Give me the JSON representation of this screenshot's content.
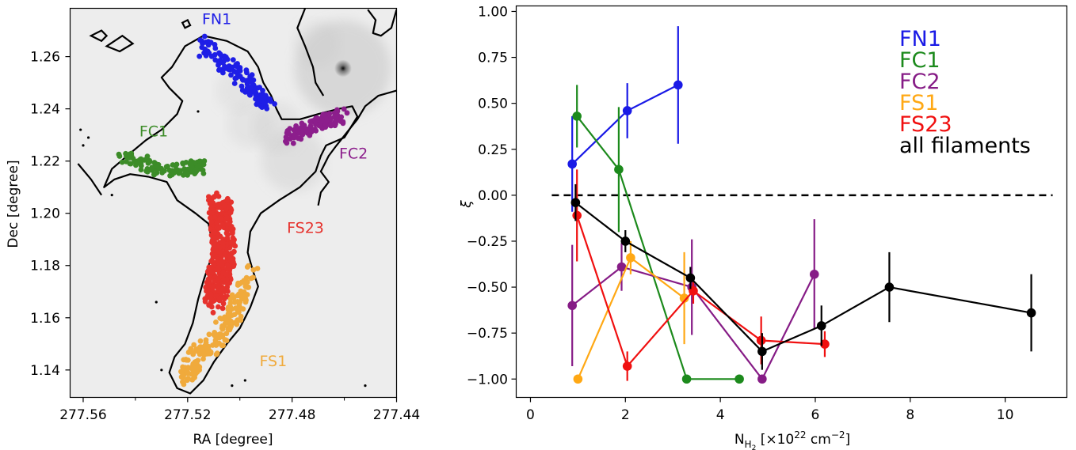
{
  "chart_data": [
    {
      "type": "scatter",
      "panel": "map",
      "xlabel": "RA [degree]",
      "ylabel": "Dec [degree]",
      "xlim": [
        277.565,
        277.44
      ],
      "ylim": [
        1.1295,
        1.2785
      ],
      "x_ticks": [
        277.56,
        277.52,
        277.48,
        277.44
      ],
      "x_tick_labels": [
        "277.56",
        "277.52",
        "277.48",
        "277.44"
      ],
      "y_ticks": [
        1.14,
        1.16,
        1.18,
        1.2,
        1.22,
        1.24,
        1.26
      ],
      "y_tick_labels": [
        "1.14",
        "1.16",
        "1.18",
        "1.20",
        "1.22",
        "1.24",
        "1.26"
      ],
      "grid": false,
      "labels": [
        {
          "text": "FN1",
          "color": "#1e1ee6",
          "at": [
            277.5145,
            1.2725
          ]
        },
        {
          "text": "FC1",
          "color": "#3c8c28",
          "at": [
            277.5385,
            1.2295
          ]
        },
        {
          "text": "FC2",
          "color": "#8c1e8c",
          "at": [
            277.462,
            1.221
          ]
        },
        {
          "text": "FS23",
          "color": "#e6322d",
          "at": [
            277.482,
            1.1925
          ]
        },
        {
          "text": "FS1",
          "color": "#f0aa3c",
          "at": [
            277.4925,
            1.1415
          ]
        }
      ],
      "series": [
        {
          "name": "FN1",
          "color": "#1e1ee6",
          "path": [
            [
              277.516,
              1.265
            ],
            [
              277.507,
              1.258
            ],
            [
              277.499,
              1.252
            ],
            [
              277.494,
              1.246
            ],
            [
              277.489,
              1.242
            ]
          ],
          "spread": 0.0035,
          "count": 140
        },
        {
          "name": "FC1",
          "color": "#3c8c28",
          "path": [
            [
              277.545,
              1.223
            ],
            [
              277.537,
              1.219
            ],
            [
              277.528,
              1.216
            ],
            [
              277.521,
              1.217
            ],
            [
              277.514,
              1.218
            ]
          ],
          "spread": 0.003,
          "count": 110
        },
        {
          "name": "FC2",
          "color": "#8c1e8c",
          "path": [
            [
              277.482,
              1.229
            ],
            [
              277.476,
              1.232
            ],
            [
              277.47,
              1.235
            ],
            [
              277.465,
              1.236
            ],
            [
              277.46,
              1.238
            ]
          ],
          "spread": 0.003,
          "count": 110
        },
        {
          "name": "FS23",
          "color": "#e6322d",
          "path": [
            [
              277.508,
              1.205
            ],
            [
              277.507,
              1.195
            ],
            [
              277.506,
              1.185
            ],
            [
              277.508,
              1.176
            ],
            [
              277.51,
              1.166
            ]
          ],
          "spread": 0.005,
          "count": 420
        },
        {
          "name": "FS1",
          "color": "#f0aa3c",
          "path": [
            [
              277.495,
              1.178
            ],
            [
              277.499,
              1.168
            ],
            [
              277.504,
              1.158
            ],
            [
              277.511,
              1.15
            ],
            [
              277.518,
              1.143
            ],
            [
              277.52,
              1.137
            ]
          ],
          "spread": 0.004,
          "count": 200
        }
      ],
      "image": {
        "kind": "grayscale intensity map",
        "sources": [
          {
            "ra": 277.4605,
            "dec": 1.2555,
            "strength": 1.0
          },
          {
            "ra": 277.4795,
            "dec": 1.2205,
            "strength": 0.55
          },
          {
            "ra": 277.4855,
            "dec": 1.233,
            "strength": 0.35
          },
          {
            "ra": 277.496,
            "dec": 1.234,
            "strength": 0.3
          },
          {
            "ra": 277.501,
            "dec": 1.247,
            "strength": 0.25
          },
          {
            "ra": 277.4705,
            "dec": 1.265,
            "strength": 0.3
          }
        ]
      },
      "contour": {
        "main": [
          [
            277.526,
            1.256
          ],
          [
            277.521,
            1.264
          ],
          [
            277.514,
            1.268
          ],
          [
            277.505,
            1.266
          ],
          [
            277.497,
            1.262
          ],
          [
            277.493,
            1.256
          ],
          [
            277.491,
            1.25
          ],
          [
            277.488,
            1.245
          ],
          [
            277.486,
            1.24
          ],
          [
            277.484,
            1.236
          ],
          [
            277.477,
            1.236
          ],
          [
            277.47,
            1.238
          ],
          [
            277.462,
            1.24
          ],
          [
            277.457,
            1.241
          ],
          [
            277.455,
            1.237
          ],
          [
            277.46,
            1.229
          ],
          [
            277.467,
            1.226
          ],
          [
            277.469,
            1.222
          ],
          [
            277.471,
            1.216
          ],
          [
            277.477,
            1.21
          ],
          [
            277.485,
            1.205
          ],
          [
            277.492,
            1.2
          ],
          [
            277.496,
            1.193
          ],
          [
            277.497,
            1.185
          ],
          [
            277.495,
            1.178
          ],
          [
            277.493,
            1.172
          ],
          [
            277.496,
            1.164
          ],
          [
            277.5,
            1.156
          ],
          [
            277.505,
            1.15
          ],
          [
            277.51,
            1.143
          ],
          [
            277.514,
            1.136
          ],
          [
            277.519,
            1.131
          ],
          [
            277.524,
            1.133
          ],
          [
            277.527,
            1.139
          ],
          [
            277.525,
            1.145
          ],
          [
            277.521,
            1.15
          ],
          [
            277.518,
            1.158
          ],
          [
            277.516,
            1.167
          ],
          [
            277.514,
            1.174
          ],
          [
            277.512,
            1.18
          ],
          [
            277.51,
            1.185
          ],
          [
            277.511,
            1.191
          ],
          [
            277.512,
            1.196
          ],
          [
            277.517,
            1.2
          ],
          [
            277.524,
            1.205
          ],
          [
            277.528,
            1.212
          ],
          [
            277.535,
            1.214
          ],
          [
            277.542,
            1.215
          ],
          [
            277.548,
            1.213
          ],
          [
            277.552,
            1.21
          ],
          [
            277.549,
            1.217
          ],
          [
            277.542,
            1.223
          ],
          [
            277.536,
            1.228
          ],
          [
            277.53,
            1.232
          ],
          [
            277.524,
            1.238
          ],
          [
            277.522,
            1.243
          ],
          [
            277.527,
            1.248
          ],
          [
            277.53,
            1.252
          ],
          [
            277.526,
            1.256
          ]
        ],
        "left_arm": [
          [
            277.553,
            1.207
          ],
          [
            277.557,
            1.213
          ],
          [
            277.562,
            1.219
          ]
        ],
        "right_region": [
          [
            277.44,
            1.247
          ],
          [
            277.447,
            1.245
          ],
          [
            277.452,
            1.241
          ],
          [
            277.455,
            1.236
          ],
          [
            277.459,
            1.231
          ],
          [
            277.463,
            1.226
          ],
          [
            277.466,
            1.222
          ],
          [
            277.469,
            1.216
          ],
          [
            277.466,
            1.212
          ],
          [
            277.469,
            1.208
          ],
          [
            277.47,
            1.203
          ]
        ],
        "right_top": [
          [
            277.44,
            1.278
          ],
          [
            277.442,
            1.271
          ],
          [
            277.446,
            1.268
          ],
          [
            277.449,
            1.269
          ],
          [
            277.448,
            1.274
          ],
          [
            277.451,
            1.278
          ]
        ],
        "top_right_arc": [
          [
            277.475,
            1.2785
          ],
          [
            277.478,
            1.271
          ],
          [
            277.475,
            1.264
          ],
          [
            277.472,
            1.256
          ],
          [
            277.471,
            1.25
          ],
          [
            277.468,
            1.245
          ]
        ],
        "islands": [
          [
            [
              277.557,
              1.268
            ],
            [
              277.553,
              1.27
            ],
            [
              277.551,
              1.268
            ],
            [
              277.553,
              1.266
            ],
            [
              277.557,
              1.268
            ]
          ],
          [
            [
              277.551,
              1.264
            ],
            [
              277.545,
              1.268
            ],
            [
              277.541,
              1.265
            ],
            [
              277.546,
              1.262
            ],
            [
              277.551,
              1.264
            ]
          ],
          [
            [
              277.522,
              1.273
            ],
            [
              277.52,
              1.274
            ],
            [
              277.519,
              1.272
            ],
            [
              277.521,
              1.271
            ],
            [
              277.522,
              1.273
            ]
          ]
        ],
        "dots": [
          [
            277.561,
            1.232
          ],
          [
            277.558,
            1.229
          ],
          [
            277.56,
            1.226
          ],
          [
            277.549,
            1.207
          ],
          [
            277.532,
            1.166
          ],
          [
            277.53,
            1.14
          ],
          [
            277.503,
            1.134
          ],
          [
            277.498,
            1.136
          ],
          [
            277.452,
            1.134
          ],
          [
            277.516,
            1.239
          ]
        ]
      }
    },
    {
      "type": "line",
      "panel": "profile",
      "xlabel": "N",
      "xlabel_sub": "H",
      "xlabel_subsub": "2",
      "xlabel_rest": " [×10",
      "xlabel_sup": "22",
      "xlabel_unit": " cm",
      "xlabel_unit_sup": "−2",
      "xlabel_close": "]",
      "ylabel": "ξ",
      "xlim": [
        -0.3,
        11.3
      ],
      "ylim": [
        -1.1,
        1.03
      ],
      "x_ticks": [
        0,
        2,
        4,
        6,
        8,
        10
      ],
      "x_tick_labels": [
        "0",
        "2",
        "4",
        "6",
        "8",
        "10"
      ],
      "y_ticks": [
        1.0,
        0.75,
        0.5,
        0.25,
        0.0,
        -0.25,
        -0.5,
        -0.75,
        -1.0
      ],
      "y_tick_labels": [
        "1.00",
        "0.75",
        "0.50",
        "0.25",
        "0.00",
        "−0.25",
        "−0.50",
        "−0.75",
        "−1.00"
      ],
      "grid": false,
      "legend_position": "top-right",
      "reference_line": {
        "y": 0,
        "x_range": [
          0.45,
          11.0
        ],
        "style": "dashed"
      },
      "series": [
        {
          "name": "FN1",
          "color": "#1a1ae6",
          "x": [
            0.88,
            2.04,
            3.11
          ],
          "y": [
            0.17,
            0.46,
            0.6
          ],
          "err": [
            0.26,
            0.15,
            0.32
          ]
        },
        {
          "name": "FC1",
          "color": "#1c8a1c",
          "x": [
            0.98,
            1.86,
            3.29,
            4.4
          ],
          "y": [
            0.43,
            0.14,
            -1.0,
            -1.0
          ],
          "err": [
            0.17,
            0.34,
            0.0,
            0.0
          ]
        },
        {
          "name": "FC2",
          "color": "#861c86",
          "x": [
            0.88,
            1.92,
            3.4,
            4.88,
            5.98
          ],
          "y": [
            -0.6,
            -0.39,
            -0.5,
            -1.0,
            -0.43
          ],
          "err": [
            0.33,
            0.13,
            0.26,
            0.0,
            0.3
          ]
        },
        {
          "name": "FS1",
          "color": "#ffa814",
          "x": [
            1.0,
            2.11,
            3.24
          ],
          "y": [
            -1.0,
            -0.34,
            -0.56
          ],
          "err": [
            0.0,
            0.09,
            0.25
          ]
        },
        {
          "name": "FS23",
          "color": "#f01010",
          "x": [
            0.98,
            2.04,
            3.43,
            4.86,
            6.2
          ],
          "y": [
            -0.11,
            -0.93,
            -0.52,
            -0.79,
            -0.81
          ],
          "err": [
            0.25,
            0.08,
            0.07,
            0.13,
            0.07
          ]
        },
        {
          "name": "all filaments",
          "color": "#000000",
          "x": [
            0.95,
            2.0,
            3.37,
            4.88,
            6.13,
            7.56,
            10.55
          ],
          "y": [
            -0.04,
            -0.25,
            -0.45,
            -0.85,
            -0.71,
            -0.5,
            -0.64
          ],
          "err": [
            0.1,
            0.06,
            0.06,
            0.1,
            0.11,
            0.19,
            0.21
          ]
        }
      ]
    }
  ]
}
